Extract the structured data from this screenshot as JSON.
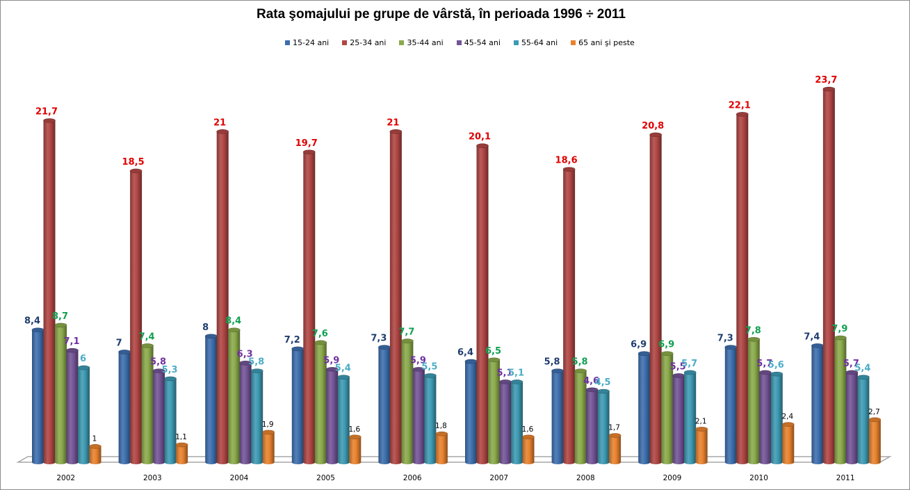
{
  "chart_data": {
    "type": "bar",
    "subtype": "3d-cylinder-clustered",
    "title": "Rata şomajului pe grupe de vârstă, în perioada 1996 ÷ 2011",
    "xlabel": "",
    "ylabel": "",
    "ylim": [
      0,
      25
    ],
    "grid": false,
    "legend_position": "top",
    "categories": [
      "2002",
      "2003",
      "2004",
      "2005",
      "2006",
      "2007",
      "2008",
      "2009",
      "2010",
      "2011"
    ],
    "series": [
      {
        "name": "15-24 ani",
        "color": "#3d6fae",
        "label_color": "#1f3c6e",
        "values": [
          8.4,
          7,
          8,
          7.2,
          7.3,
          6.4,
          5.8,
          6.9,
          7.3,
          7.4
        ],
        "labels": [
          "8,4",
          "7",
          "8",
          "7,2",
          "7,3",
          "6,4",
          "5,8",
          "6,9",
          "7,3",
          "7,4"
        ]
      },
      {
        "name": "25-34 ani",
        "color": "#b04644",
        "label_color": "#e00000",
        "values": [
          21.7,
          18.5,
          21,
          19.7,
          21,
          20.1,
          18.6,
          20.8,
          22.1,
          23.7
        ],
        "labels": [
          "21,7",
          "18,5",
          "21",
          "19,7",
          "21",
          "20,1",
          "18,6",
          "20,8",
          "22,1",
          "23,7"
        ]
      },
      {
        "name": "35-44 ani",
        "color": "#8aaa4a",
        "label_color": "#10a050",
        "values": [
          8.7,
          7.4,
          8.4,
          7.6,
          7.7,
          6.5,
          5.8,
          6.9,
          7.8,
          7.9
        ],
        "labels": [
          "8,7",
          "7,4",
          "8,4",
          "7,6",
          "7,7",
          "6,5",
          "5,8",
          "6,9",
          "7,8",
          "7,9"
        ]
      },
      {
        "name": "45-54 ani",
        "color": "#735496",
        "label_color": "#7030a0",
        "values": [
          7.1,
          5.8,
          6.3,
          5.9,
          5.9,
          5.1,
          4.6,
          5.5,
          5.7,
          5.7
        ],
        "labels": [
          "7,1",
          "5,8",
          "6,3",
          "5,9",
          "5,9",
          "5,1",
          "4,6",
          "5,5",
          "5,7",
          "5,7"
        ]
      },
      {
        "name": "55-64 ani",
        "color": "#3d9ab3",
        "label_color": "#4bacc6",
        "values": [
          6,
          5.3,
          5.8,
          5.4,
          5.5,
          5.1,
          4.5,
          5.7,
          5.6,
          5.4
        ],
        "labels": [
          "6",
          "5,3",
          "5,8",
          "5,4",
          "5,5",
          "5,1",
          "4,5",
          "5,7",
          "5,6",
          "5,4"
        ]
      },
      {
        "name": "65 ani şi peste",
        "color": "#e8822e",
        "label_color": "#000000",
        "values": [
          1,
          1.1,
          1.9,
          1.6,
          1.8,
          1.6,
          1.7,
          2.1,
          2.4,
          2.7
        ],
        "labels": [
          "1",
          "1,1",
          "1,9",
          "1,6",
          "1,8",
          "1,6",
          "1,7",
          "2,1",
          "2,4",
          "2,7"
        ]
      }
    ]
  }
}
